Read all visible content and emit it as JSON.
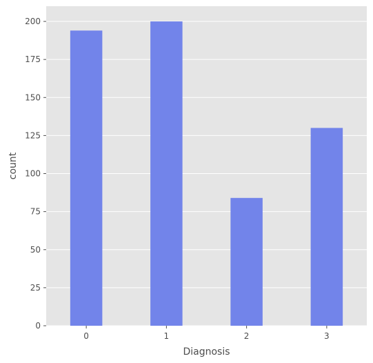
{
  "chart_data": {
    "type": "bar",
    "categories": [
      "0",
      "1",
      "2",
      "3"
    ],
    "values": [
      194,
      200,
      84,
      130
    ],
    "title": "",
    "xlabel": "Diagnosis",
    "ylabel": "count",
    "ylim": [
      0,
      210
    ],
    "yticks": [
      0,
      25,
      50,
      75,
      100,
      125,
      150,
      175,
      200
    ],
    "grid": true,
    "colors": {
      "bar": "#7284ea",
      "plot_background": "#e5e5e5",
      "grid": "#ffffff",
      "text": "#4d4d4d"
    }
  }
}
